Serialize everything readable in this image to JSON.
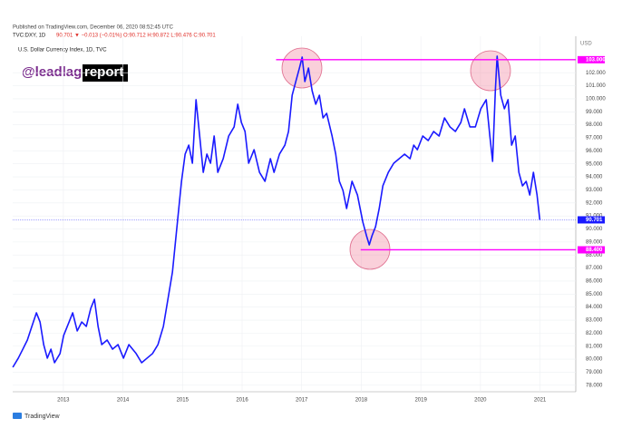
{
  "chart_data": {
    "type": "line",
    "published": "Published on TradingView.com, December 06, 2020 08:52:45 UTC",
    "symbol": "TVC:DXY, 1D",
    "quote": "90.701 ▼ −0.013 (−0.01%) O:90.712 H:90.872 L:90.476 C:90.701",
    "title": "U.S. Dollar Currency Index, 1D, TVC",
    "watermark": [
      "@leadlag",
      "report"
    ],
    "currency": "USD",
    "footer": "TradingView",
    "last_price": {
      "value": 90.701,
      "label": "90.701",
      "color": "#1a1aff"
    },
    "levels": [
      {
        "value": 103,
        "label": "103.000",
        "color": "#ff00ff",
        "start": 2016.57
      },
      {
        "value": 88.4,
        "label": "88.400",
        "color": "#ff00ff",
        "start": 2017.99
      }
    ],
    "x": [
      2012.152,
      2012.244,
      2012.32,
      2012.396,
      2012.472,
      2012.548,
      2012.609,
      2012.67,
      2012.731,
      2012.792,
      2012.852,
      2012.944,
      2013.005,
      2013.096,
      2013.157,
      2013.233,
      2013.309,
      2013.385,
      2013.461,
      2013.522,
      2013.583,
      2013.644,
      2013.735,
      2013.826,
      2013.918,
      2014.009,
      2014.1,
      2014.222,
      2014.314,
      2014.405,
      2014.496,
      2014.588,
      2014.679,
      2014.755,
      2014.831,
      2014.907,
      2014.983,
      2015.044,
      2015.105,
      2015.166,
      2015.227,
      2015.288,
      2015.348,
      2015.409,
      2015.47,
      2015.531,
      2015.592,
      2015.683,
      2015.775,
      2015.866,
      2015.927,
      2015.988,
      2016.049,
      2016.11,
      2016.201,
      2016.292,
      2016.384,
      2016.475,
      2016.536,
      2016.627,
      2016.718,
      2016.779,
      2016.84,
      2016.901,
      2016.962,
      2017.008,
      2017.053,
      2017.114,
      2017.175,
      2017.236,
      2017.297,
      2017.358,
      2017.419,
      2017.51,
      2017.571,
      2017.632,
      2017.693,
      2017.754,
      2017.845,
      2017.936,
      2018.027,
      2018.088,
      2018.134,
      2018.18,
      2018.24,
      2018.301,
      2018.362,
      2018.454,
      2018.545,
      2018.636,
      2018.727,
      2018.819,
      2018.88,
      2018.941,
      2019.032,
      2019.123,
      2019.215,
      2019.306,
      2019.397,
      2019.489,
      2019.58,
      2019.671,
      2019.732,
      2019.823,
      2019.915,
      2020.006,
      2020.097,
      2020.158,
      2020.204,
      2020.25,
      2020.28,
      2020.341,
      2020.402,
      2020.463,
      2020.523,
      2020.584,
      2020.645,
      2020.706,
      2020.767,
      2020.828,
      2020.889,
      2020.95,
      2020.996
    ],
    "series": [
      {
        "name": "DXY",
        "color": "#1a1aff",
        "values": [
          79.38,
          80.08,
          80.77,
          81.47,
          82.52,
          83.56,
          82.86,
          81.12,
          80.08,
          80.77,
          79.73,
          80.43,
          81.82,
          82.86,
          83.56,
          82.17,
          82.86,
          82.52,
          83.91,
          84.6,
          82.52,
          81.12,
          81.47,
          80.77,
          81.12,
          80.08,
          81.12,
          80.43,
          79.73,
          80.08,
          80.43,
          81.12,
          82.52,
          84.6,
          86.69,
          90.18,
          93.66,
          95.75,
          96.44,
          95.05,
          99.93,
          97.14,
          94.35,
          95.75,
          95.05,
          97.14,
          94.35,
          95.4,
          97.14,
          97.84,
          99.58,
          98.18,
          97.49,
          95.05,
          96.09,
          94.35,
          93.66,
          95.4,
          94.35,
          95.75,
          96.44,
          97.49,
          100.27,
          101.32,
          102.36,
          103.2,
          101.32,
          102.36,
          100.62,
          99.58,
          100.27,
          98.53,
          98.88,
          97.14,
          95.75,
          93.66,
          92.96,
          91.57,
          93.66,
          92.61,
          90.52,
          89.48,
          88.78,
          89.48,
          90.18,
          91.57,
          93.31,
          94.35,
          95.05,
          95.4,
          95.75,
          95.4,
          96.44,
          96.09,
          97.14,
          96.79,
          97.49,
          97.14,
          98.53,
          97.84,
          97.49,
          98.18,
          99.23,
          97.84,
          97.84,
          99.23,
          99.93,
          97.14,
          95.19,
          100.62,
          103.27,
          100.27,
          99.23,
          99.93,
          96.44,
          97.14,
          94.35,
          93.31,
          93.66,
          92.61,
          94.35,
          92.61,
          90.7
        ]
      }
    ],
    "xlim": [
      2012.15,
      2021.6
    ],
    "xticks": [
      2013,
      2014,
      2015,
      2016,
      2017,
      2018,
      2019,
      2020,
      2021
    ],
    "ylim": [
      77.5,
      104.8
    ],
    "yticks": [
      {
        "value": 78,
        "label": "78.000"
      },
      {
        "value": 79,
        "label": "79.000"
      },
      {
        "value": 80,
        "label": "80.000"
      },
      {
        "value": 81,
        "label": "81.000"
      },
      {
        "value": 82,
        "label": "82.000"
      },
      {
        "value": 83,
        "label": "83.000"
      },
      {
        "value": 84,
        "label": "84.000"
      },
      {
        "value": 85,
        "label": "85.000"
      },
      {
        "value": 86,
        "label": "86.000"
      },
      {
        "value": 87,
        "label": "87.000"
      },
      {
        "value": 88,
        "label": "88.000"
      },
      {
        "value": 89,
        "label": "89.000"
      },
      {
        "value": 90,
        "label": "90.000"
      },
      {
        "value": 91,
        "label": "91.000"
      },
      {
        "value": 92,
        "label": "92.000"
      },
      {
        "value": 93,
        "label": "93.000"
      },
      {
        "value": 94,
        "label": "94.000"
      },
      {
        "value": 95,
        "label": "95.000"
      },
      {
        "value": 96,
        "label": "96.000"
      },
      {
        "value": 97,
        "label": "97.000"
      },
      {
        "value": 98,
        "label": "98.000"
      },
      {
        "value": 99,
        "label": "99.000"
      },
      {
        "value": 100,
        "label": "100.000"
      },
      {
        "value": 101,
        "label": "101.000"
      },
      {
        "value": 102,
        "label": "102.000"
      }
    ],
    "grid": true
  }
}
